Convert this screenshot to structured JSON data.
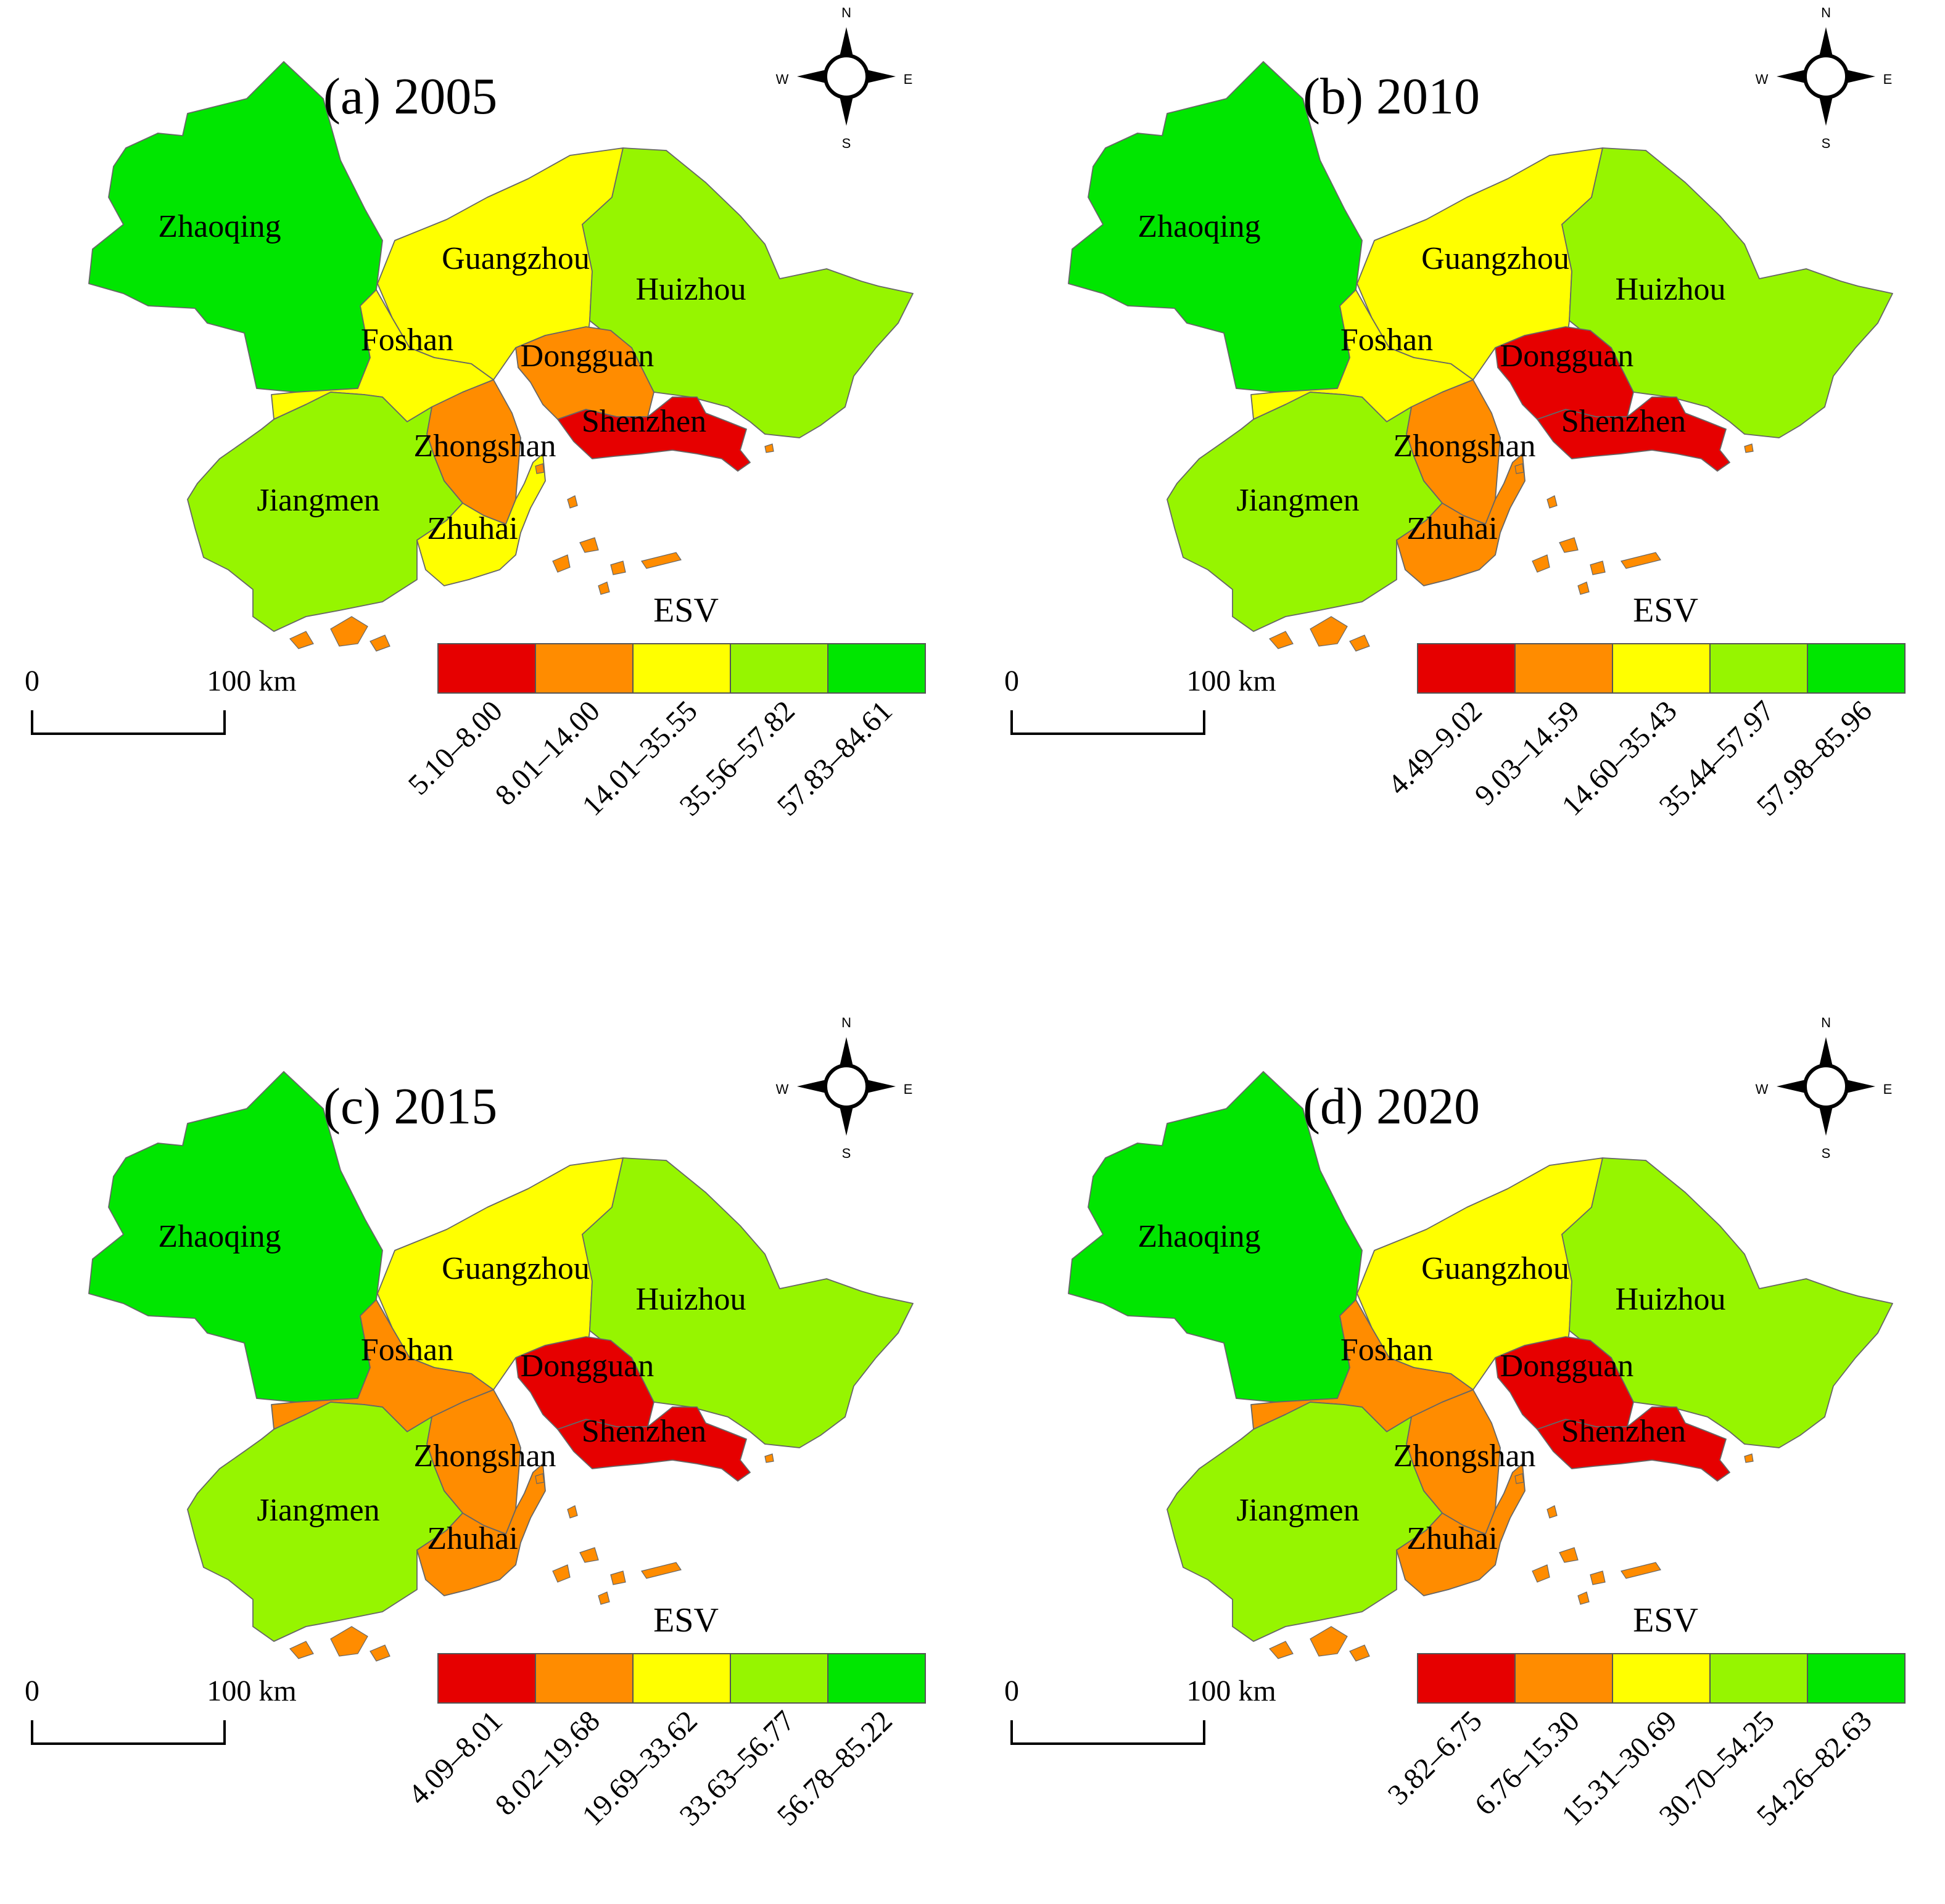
{
  "panels": [
    {
      "title": "(a) 2005",
      "legend_title": "ESV",
      "classes": [
        "5.10–8.00",
        "8.01–14.00",
        "14.01–35.55",
        "35.56–57.82",
        "57.83–84.61"
      ],
      "city_class": {
        "Zhaoqing": 5,
        "Guangzhou": 3,
        "Foshan": 3,
        "Huizhou": 4,
        "Dongguan": 2,
        "Shenzhen": 1,
        "Zhongshan": 2,
        "Jiangmen": 4,
        "Zhuhai": 3
      }
    },
    {
      "title": "(b) 2010",
      "legend_title": "ESV",
      "classes": [
        "4.49–9.02",
        "9.03–14.59",
        "14.60–35.43",
        "35.44–57.97",
        "57.98–85.96"
      ],
      "city_class": {
        "Zhaoqing": 5,
        "Guangzhou": 3,
        "Foshan": 3,
        "Huizhou": 4,
        "Dongguan": 1,
        "Shenzhen": 1,
        "Zhongshan": 2,
        "Jiangmen": 4,
        "Zhuhai": 2
      }
    },
    {
      "title": "(c) 2015",
      "legend_title": "ESV",
      "classes": [
        "4.09–8.01",
        "8.02–19.68",
        "19.69–33.62",
        "33.63–56.77",
        "56.78–85.22"
      ],
      "city_class": {
        "Zhaoqing": 5,
        "Guangzhou": 3,
        "Foshan": 2,
        "Huizhou": 4,
        "Dongguan": 1,
        "Shenzhen": 1,
        "Zhongshan": 2,
        "Jiangmen": 4,
        "Zhuhai": 2
      }
    },
    {
      "title": "(d) 2020",
      "legend_title": "ESV",
      "classes": [
        "3.82–6.75",
        "6.76–15.30",
        "15.31–30.69",
        "30.70–54.25",
        "54.26–82.63"
      ],
      "city_class": {
        "Zhaoqing": 5,
        "Guangzhou": 3,
        "Foshan": 2,
        "Huizhou": 4,
        "Dongguan": 1,
        "Shenzhen": 1,
        "Zhongshan": 2,
        "Jiangmen": 4,
        "Zhuhai": 2
      }
    }
  ],
  "class_colors": [
    "#e60000",
    "#ff8c00",
    "#ffff00",
    "#96f500",
    "#00e600"
  ],
  "cities": [
    "Zhaoqing",
    "Guangzhou",
    "Foshan",
    "Huizhou",
    "Dongguan",
    "Shenzhen",
    "Zhongshan",
    "Jiangmen",
    "Zhuhai"
  ],
  "compass": {
    "n": "N",
    "s": "S",
    "e": "E",
    "w": "W"
  },
  "scale_bar": {
    "start": "0",
    "end": "100 km"
  }
}
